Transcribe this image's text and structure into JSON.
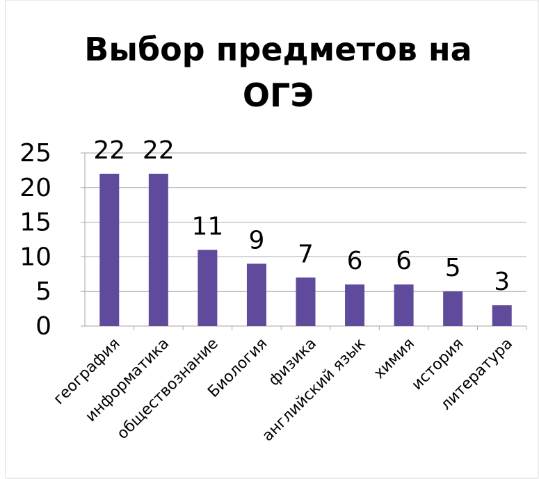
{
  "chart_data": {
    "type": "bar",
    "title": "Выбор предметов на ОГЭ",
    "categories": [
      "география",
      "информатика",
      "обществознание",
      "Биология",
      "физика",
      "английский язык",
      "химия",
      "история",
      "литература"
    ],
    "values": [
      22,
      22,
      11,
      9,
      7,
      6,
      6,
      5,
      3
    ],
    "color": "#5f4a9b",
    "ylim": [
      0,
      25
    ],
    "yticks": [
      0,
      5,
      10,
      15,
      20,
      25
    ],
    "grid": true
  }
}
